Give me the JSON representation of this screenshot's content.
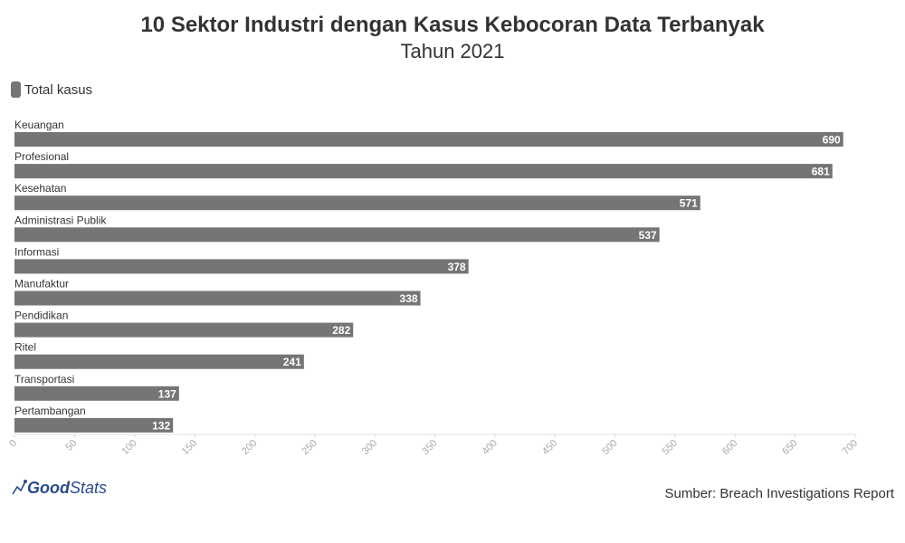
{
  "header": {
    "title": "10 Sektor Industri dengan Kasus Kebocoran Data Terbanyak",
    "subtitle": "Tahun 2021"
  },
  "legend": {
    "label": "Total kasus",
    "color": "#757575"
  },
  "footer": {
    "logo_part1": "Good",
    "logo_part2": "Stats",
    "source": "Sumber: Breach Investigations Report"
  },
  "chart_data": {
    "type": "bar",
    "orientation": "horizontal",
    "categories": [
      "Keuangan",
      "Profesional",
      "Kesehatan",
      "Administrasi Publik",
      "Informasi",
      "Manufaktur",
      "Pendidikan",
      "Ritel",
      "Transportasi",
      "Pertambangan"
    ],
    "series": [
      {
        "name": "Total kasus",
        "values": [
          690,
          681,
          571,
          537,
          378,
          338,
          282,
          241,
          137,
          132
        ],
        "color": "#757575"
      }
    ],
    "xlim": [
      0,
      700
    ],
    "xticks": [
      0,
      50,
      100,
      150,
      200,
      250,
      300,
      350,
      400,
      450,
      500,
      550,
      600,
      650,
      700
    ],
    "grid": false,
    "legend_position": "top-left",
    "data_labels": true
  }
}
